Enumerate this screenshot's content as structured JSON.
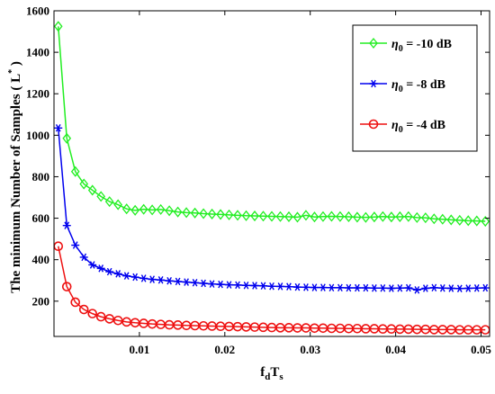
{
  "chart_data": {
    "type": "line",
    "xlabel": {
      "main": "f",
      "sub1": "d",
      "main2": "T",
      "sub2": "s"
    },
    "ylabel": {
      "text": "The minimum Number of Samples ( L",
      "sup": "*",
      "close": " )"
    },
    "xlim": [
      0,
      0.051
    ],
    "ylim": [
      30,
      1600
    ],
    "xticks": [
      0.01,
      0.02,
      0.03,
      0.04,
      0.05
    ],
    "xtick_labels": [
      "0.01",
      "0.02",
      "0.03",
      "0.04",
      "0.05"
    ],
    "yticks": [
      200,
      400,
      600,
      800,
      1000,
      1200,
      1400,
      1600
    ],
    "ytick_labels": [
      "200",
      "400",
      "600",
      "800",
      "1000",
      "1200",
      "1400",
      "1600"
    ],
    "grid": false,
    "legend_position": "top-right",
    "x": [
      0.0005,
      0.0015,
      0.0025,
      0.0035,
      0.0045,
      0.0055,
      0.0065,
      0.0075,
      0.0085,
      0.0095,
      0.0105,
      0.0115,
      0.0125,
      0.0135,
      0.0145,
      0.0155,
      0.0165,
      0.0175,
      0.0185,
      0.0195,
      0.0205,
      0.0215,
      0.0225,
      0.0235,
      0.0245,
      0.0255,
      0.0265,
      0.0275,
      0.0285,
      0.0295,
      0.0305,
      0.0315,
      0.0325,
      0.0335,
      0.0345,
      0.0355,
      0.0365,
      0.0375,
      0.0385,
      0.0395,
      0.0405,
      0.0415,
      0.0425,
      0.0435,
      0.0445,
      0.0455,
      0.0465,
      0.0475,
      0.0485,
      0.0495,
      0.0505
    ],
    "series": [
      {
        "name": "η0 = -10 dB",
        "name_parts": {
          "symbol": "η",
          "sub": "0",
          "rest": " = -10 dB"
        },
        "color": "#22ee22",
        "marker": "diamond",
        "values": [
          1525,
          985,
          825,
          765,
          735,
          705,
          680,
          665,
          645,
          638,
          643,
          640,
          642,
          636,
          630,
          627,
          625,
          622,
          620,
          618,
          616,
          614,
          612,
          611,
          610,
          609,
          608,
          607,
          605,
          614,
          606,
          608,
          609,
          608,
          607,
          605,
          604,
          606,
          608,
          606,
          607,
          608,
          603,
          602,
          597,
          595,
          592,
          590,
          588,
          587,
          585
        ]
      },
      {
        "name": "η0 = -8 dB",
        "name_parts": {
          "symbol": "η",
          "sub": "0",
          "rest": " = -8 dB"
        },
        "color": "#0000ee",
        "marker": "asterisk",
        "values": [
          1035,
          565,
          470,
          412,
          375,
          358,
          342,
          332,
          322,
          316,
          310,
          305,
          302,
          298,
          295,
          292,
          289,
          286,
          283,
          281,
          279,
          278,
          276,
          275,
          274,
          272,
          271,
          270,
          268,
          267,
          266,
          266,
          265,
          265,
          264,
          264,
          264,
          263,
          263,
          262,
          263,
          264,
          254,
          262,
          265,
          263,
          262,
          261,
          262,
          263,
          264
        ]
      },
      {
        "name": "η0 = -4 dB",
        "name_parts": {
          "symbol": "η",
          "sub": "0",
          "rest": " = -4 dB"
        },
        "color": "#ee1111",
        "marker": "circle",
        "values": [
          465,
          270,
          195,
          160,
          140,
          125,
          115,
          107,
          100,
          96,
          93,
          90,
          88,
          86,
          85,
          83,
          82,
          81,
          80,
          79,
          78,
          77,
          76,
          75,
          74,
          73,
          72,
          72,
          71,
          71,
          70,
          70,
          69,
          69,
          68,
          68,
          67,
          67,
          66,
          66,
          65,
          65,
          64,
          64,
          63,
          63,
          63,
          62,
          62,
          62,
          62
        ]
      }
    ]
  }
}
